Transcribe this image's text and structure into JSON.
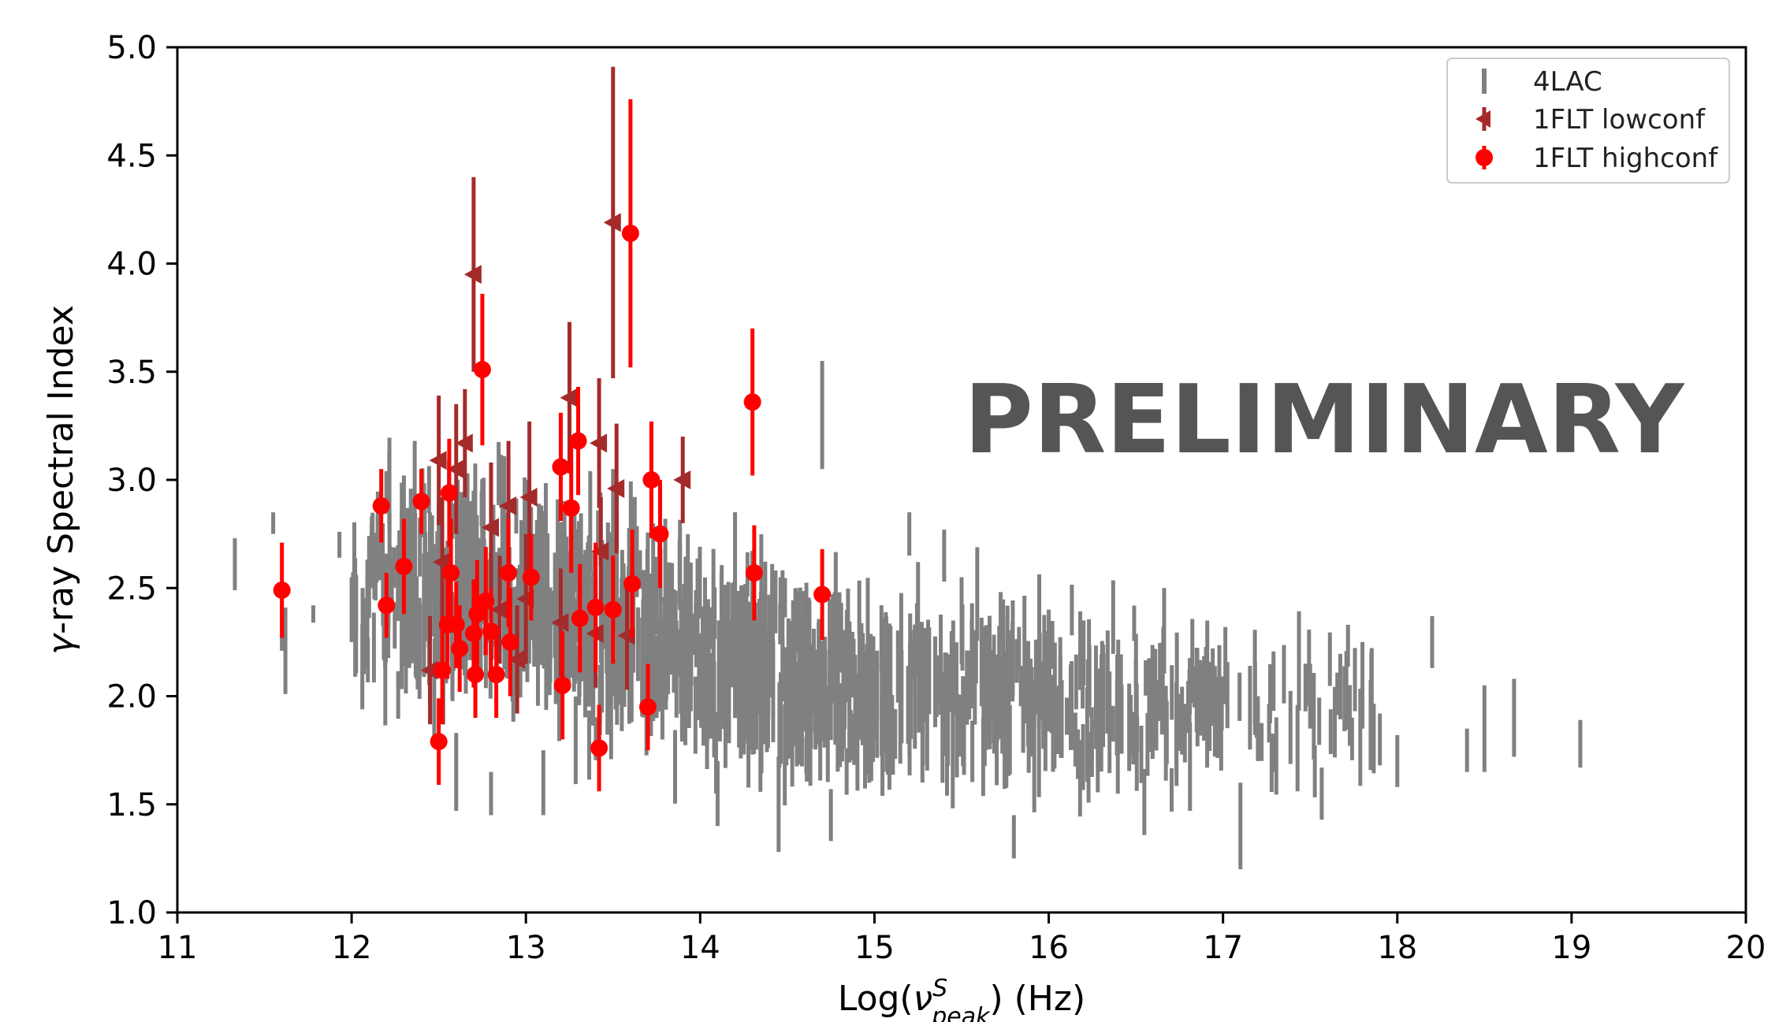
{
  "chart_data": {
    "type": "scatter",
    "title": "",
    "xlabel_prefix": "Log(",
    "xlabel_nu": "ν",
    "xlabel_sup": "S",
    "xlabel_sub": "peak",
    "xlabel_suffix": ") (Hz)",
    "ylabel_greek": "γ",
    "ylabel_rest": "-ray Spectral Index",
    "xlim": [
      11,
      20
    ],
    "ylim": [
      1.0,
      5.0
    ],
    "xticks": [
      11,
      12,
      13,
      14,
      15,
      16,
      17,
      18,
      19,
      20
    ],
    "xtick_labels": [
      "11",
      "12",
      "13",
      "14",
      "15",
      "16",
      "17",
      "18",
      "19",
      "20"
    ],
    "yticks": [
      1.0,
      1.5,
      2.0,
      2.5,
      3.0,
      3.5,
      4.0,
      4.5,
      5.0
    ],
    "ytick_labels": [
      "1.0",
      "1.5",
      "2.0",
      "2.5",
      "3.0",
      "3.5",
      "4.0",
      "4.5",
      "5.0"
    ],
    "grid": false,
    "legend_position": "top-right",
    "annotation": "PRELIMINARY",
    "colors": {
      "4lac": "#808080",
      "lowconf": "#a52a2a",
      "highconf": "#ff0000",
      "watermark": "#555555"
    },
    "series": [
      {
        "name": "4LAC",
        "marker": "errorbar-only",
        "points": [
          [
            11.33,
            2.61,
            0.12
          ],
          [
            11.55,
            2.8,
            0.05
          ],
          [
            11.6,
            2.33,
            0.12
          ],
          [
            11.62,
            2.21,
            0.2
          ],
          [
            11.78,
            2.38,
            0.04
          ],
          [
            11.93,
            2.7,
            0.06
          ],
          [
            12.0,
            2.4,
            0.15
          ],
          [
            12.3,
            2.9,
            0.12
          ],
          [
            12.5,
            2.5,
            0.4
          ],
          [
            12.6,
            1.65,
            0.18
          ],
          [
            12.7,
            2.6,
            0.35
          ],
          [
            12.8,
            1.55,
            0.1
          ],
          [
            13.0,
            2.7,
            0.3
          ],
          [
            13.1,
            1.6,
            0.15
          ],
          [
            13.3,
            2.5,
            0.25
          ],
          [
            13.5,
            2.8,
            0.25
          ],
          [
            13.8,
            2.6,
            0.22
          ],
          [
            14.1,
            1.55,
            0.15
          ],
          [
            14.2,
            2.6,
            0.25
          ],
          [
            14.3,
            2.3,
            0.2
          ],
          [
            14.45,
            1.5,
            0.22
          ],
          [
            14.55,
            2.35,
            0.15
          ],
          [
            14.7,
            3.3,
            0.25
          ],
          [
            14.75,
            1.45,
            0.12
          ],
          [
            15.0,
            2.0,
            0.2
          ],
          [
            15.2,
            2.75,
            0.1
          ],
          [
            15.25,
            2.4,
            0.22
          ],
          [
            15.4,
            2.65,
            0.12
          ],
          [
            15.5,
            2.35,
            0.2
          ],
          [
            15.8,
            1.35,
            0.1
          ],
          [
            16.0,
            2.25,
            0.15
          ],
          [
            16.2,
            2.2,
            0.15
          ],
          [
            16.5,
            2.05,
            0.12
          ],
          [
            16.8,
            1.95,
            0.12
          ],
          [
            17.1,
            1.4,
            0.2
          ],
          [
            17.2,
            1.85,
            0.15
          ],
          [
            17.5,
            2.0,
            0.15
          ],
          [
            17.8,
            2.05,
            0.2
          ],
          [
            17.9,
            1.8,
            0.12
          ],
          [
            18.0,
            1.7,
            0.12
          ],
          [
            18.2,
            2.25,
            0.12
          ],
          [
            18.4,
            1.75,
            0.1
          ],
          [
            18.5,
            1.85,
            0.2
          ],
          [
            18.67,
            1.9,
            0.18
          ],
          [
            19.05,
            1.78,
            0.11
          ]
        ]
      },
      {
        "name": "1FLT lowconf",
        "marker": "triangle-left",
        "points": [
          [
            12.45,
            2.12,
            0.25
          ],
          [
            12.5,
            3.09,
            0.3
          ],
          [
            12.52,
            2.62,
            0.3
          ],
          [
            12.6,
            3.05,
            0.3
          ],
          [
            12.65,
            3.17,
            0.25
          ],
          [
            12.7,
            3.95,
            0.45
          ],
          [
            12.8,
            2.78,
            0.3
          ],
          [
            12.85,
            2.4,
            0.25
          ],
          [
            12.9,
            2.88,
            0.3
          ],
          [
            12.95,
            2.17,
            0.25
          ],
          [
            13.0,
            2.45,
            0.3
          ],
          [
            13.02,
            2.92,
            0.35
          ],
          [
            13.2,
            2.34,
            0.25
          ],
          [
            13.25,
            3.38,
            0.35
          ],
          [
            13.4,
            2.29,
            0.25
          ],
          [
            13.42,
            3.17,
            0.3
          ],
          [
            13.43,
            2.67,
            0.25
          ],
          [
            13.5,
            4.19,
            0.72
          ],
          [
            13.52,
            2.96,
            0.3
          ],
          [
            13.58,
            2.28,
            0.25
          ],
          [
            13.9,
            3.0,
            0.2
          ]
        ]
      },
      {
        "name": "1FLT highconf",
        "marker": "circle",
        "points": [
          [
            11.6,
            2.49,
            0.22
          ],
          [
            12.17,
            2.88,
            0.17
          ],
          [
            12.2,
            2.42,
            0.15
          ],
          [
            12.3,
            2.6,
            0.22
          ],
          [
            12.4,
            2.9,
            0.15
          ],
          [
            12.5,
            1.79,
            0.2
          ],
          [
            12.52,
            2.12,
            0.25
          ],
          [
            12.55,
            2.33,
            0.25
          ],
          [
            12.56,
            2.94,
            0.25
          ],
          [
            12.57,
            2.57,
            0.25
          ],
          [
            12.6,
            2.33,
            0.2
          ],
          [
            12.62,
            2.22,
            0.2
          ],
          [
            12.7,
            2.29,
            0.25
          ],
          [
            12.71,
            2.1,
            0.2
          ],
          [
            12.72,
            2.38,
            0.25
          ],
          [
            12.75,
            3.51,
            0.35
          ],
          [
            12.77,
            2.44,
            0.25
          ],
          [
            12.8,
            2.3,
            0.2
          ],
          [
            12.83,
            2.1,
            0.2
          ],
          [
            12.9,
            2.57,
            0.25
          ],
          [
            12.91,
            2.25,
            0.25
          ],
          [
            13.03,
            2.55,
            0.2
          ],
          [
            13.2,
            3.06,
            0.25
          ],
          [
            13.21,
            2.05,
            0.25
          ],
          [
            13.26,
            2.87,
            0.3
          ],
          [
            13.3,
            3.18,
            0.25
          ],
          [
            13.31,
            2.36,
            0.25
          ],
          [
            13.4,
            2.41,
            0.3
          ],
          [
            13.42,
            1.76,
            0.2
          ],
          [
            13.5,
            2.4,
            0.25
          ],
          [
            13.6,
            4.14,
            0.62
          ],
          [
            13.61,
            2.52,
            0.25
          ],
          [
            13.7,
            1.95,
            0.2
          ],
          [
            13.72,
            3.0,
            0.27
          ],
          [
            13.77,
            2.75,
            0.25
          ],
          [
            14.3,
            3.36,
            0.34
          ],
          [
            14.31,
            2.57,
            0.22
          ],
          [
            14.7,
            2.47,
            0.21
          ]
        ]
      }
    ],
    "legend": [
      "4LAC",
      "1FLT lowconf",
      "1FLT highconf"
    ]
  }
}
